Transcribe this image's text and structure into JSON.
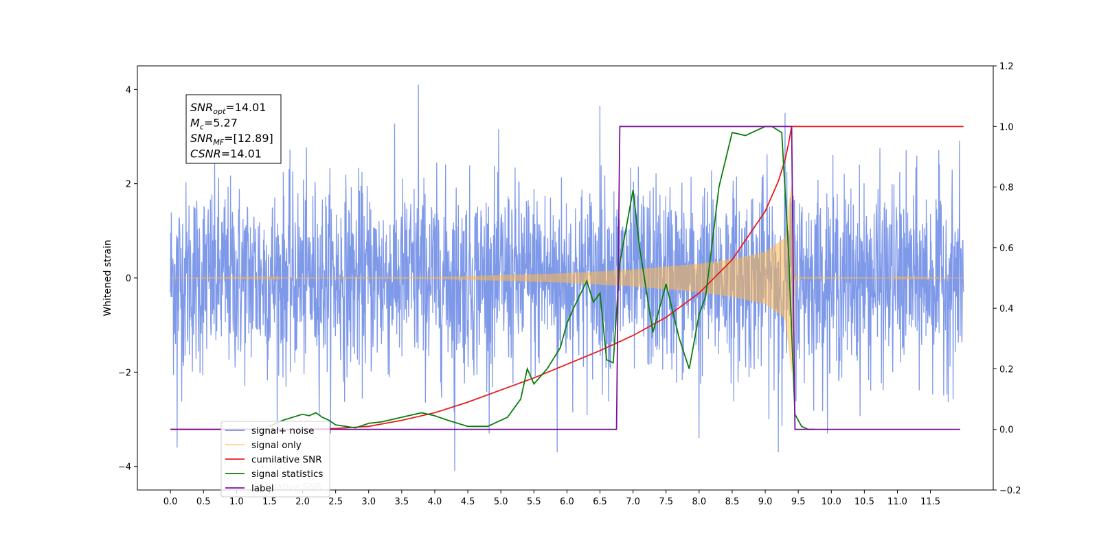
{
  "chart_data": {
    "type": "line",
    "title": "",
    "xlabel": "",
    "ylabel": "Whitened strain",
    "xlim": [
      -0.5,
      12.45
    ],
    "ylim": [
      -4.5,
      4.5
    ],
    "y2lim": [
      -0.2,
      1.2
    ],
    "x_ticks": [
      0.0,
      0.5,
      1.0,
      1.5,
      2.0,
      2.5,
      3.0,
      3.5,
      4.0,
      4.5,
      5.0,
      5.5,
      6.0,
      6.5,
      7.0,
      7.5,
      8.0,
      8.5,
      9.0,
      9.5,
      10.0,
      10.5,
      11.0,
      11.5
    ],
    "x_tick_labels": [
      "0.0",
      "0.5",
      "1.0",
      "1.5",
      "2.0",
      "2.5",
      "3.0",
      "3.5",
      "4.0",
      "4.5",
      "5.0",
      "5.5",
      "6.0",
      "6.5",
      "7.0",
      "7.5",
      "8.0",
      "8.5",
      "9.0",
      "9.5",
      "10.0",
      "10.5",
      "11.0",
      "11.5"
    ],
    "y_ticks": [
      -4,
      -2,
      0,
      2,
      4
    ],
    "y_tick_labels": [
      "−4",
      "−2",
      "0",
      "2",
      "4"
    ],
    "y2_ticks": [
      -0.2,
      0.0,
      0.2,
      0.4,
      0.6,
      0.8,
      1.0,
      1.2
    ],
    "y2_tick_labels": [
      "−0.2",
      "0.0",
      "0.2",
      "0.4",
      "0.6",
      "0.8",
      "1.0",
      "1.2"
    ],
    "grid": false,
    "legend_position": "lower-left",
    "annotation": {
      "lines": [
        {
          "main": "SNR",
          "sub": "opt",
          "rest": "=14.01"
        },
        {
          "main": "M",
          "sub": "c",
          "rest": "=5.27"
        },
        {
          "main": "SNR",
          "sub": "MF",
          "rest": "=[12.89]"
        },
        {
          "main": "CSNR",
          "sub": "",
          "rest": "=14.01"
        }
      ]
    },
    "series": [
      {
        "name": "signal+ noise",
        "axis": "left",
        "color": "#7893e8",
        "kind": "noise",
        "x_range": [
          0.0,
          12.0
        ],
        "spread": 1.0,
        "extreme_peaks": [
          [
            3.75,
            4.1
          ],
          [
            4.3,
            -4.1
          ],
          [
            0.1,
            -3.6
          ],
          [
            6.5,
            3.65
          ],
          [
            9.2,
            -3.7
          ],
          [
            9.3,
            3.5
          ],
          [
            5.85,
            -3.7
          ],
          [
            8.0,
            -3.4
          ]
        ]
      },
      {
        "name": "signal only",
        "axis": "left",
        "color": "#ffb84d",
        "kind": "chirp",
        "x_range": [
          0.0,
          12.0
        ],
        "merger_time": 9.4,
        "envelope": [
          [
            0.0,
            0.0
          ],
          [
            4.0,
            0.02
          ],
          [
            6.0,
            0.1
          ],
          [
            7.0,
            0.18
          ],
          [
            8.0,
            0.3
          ],
          [
            8.5,
            0.4
          ],
          [
            9.0,
            0.55
          ],
          [
            9.3,
            0.85
          ],
          [
            9.4,
            2.0
          ],
          [
            9.45,
            0.02
          ],
          [
            12.0,
            0.0
          ]
        ]
      },
      {
        "name": "cumilative SNR",
        "axis": "right",
        "color": "#e8191c",
        "x": [
          0.0,
          2.0,
          2.5,
          3.0,
          3.5,
          4.0,
          4.5,
          5.0,
          5.5,
          6.0,
          6.5,
          7.0,
          7.5,
          8.0,
          8.5,
          9.0,
          9.2,
          9.3,
          9.35,
          9.4,
          12.0
        ],
        "y": [
          0.0,
          0.0,
          0.003,
          0.01,
          0.03,
          0.055,
          0.09,
          0.13,
          0.17,
          0.215,
          0.26,
          0.31,
          0.37,
          0.45,
          0.56,
          0.72,
          0.82,
          0.89,
          0.94,
          1.0,
          1.0
        ]
      },
      {
        "name": "signal statistics",
        "axis": "right",
        "color": "#0a7d0a",
        "x": [
          1.5,
          1.7,
          1.85,
          2.0,
          2.1,
          2.2,
          2.3,
          2.4,
          2.5,
          2.8,
          3.0,
          3.2,
          3.5,
          3.8,
          4.0,
          4.2,
          4.5,
          4.8,
          5.1,
          5.3,
          5.4,
          5.5,
          5.7,
          5.9,
          6.0,
          6.1,
          6.3,
          6.4,
          6.5,
          6.6,
          6.7,
          6.8,
          7.0,
          7.1,
          7.3,
          7.5,
          7.7,
          7.85,
          8.0,
          8.1,
          8.3,
          8.5,
          8.7,
          9.0,
          9.1,
          9.25,
          9.35,
          9.45,
          9.55,
          9.65,
          9.75
        ],
        "y": [
          0.01,
          0.03,
          0.04,
          0.05,
          0.045,
          0.055,
          0.04,
          0.03,
          0.015,
          0.005,
          0.02,
          0.025,
          0.04,
          0.055,
          0.045,
          0.03,
          0.01,
          0.01,
          0.04,
          0.1,
          0.2,
          0.15,
          0.2,
          0.27,
          0.35,
          0.4,
          0.49,
          0.42,
          0.45,
          0.23,
          0.22,
          0.55,
          0.79,
          0.6,
          0.32,
          0.48,
          0.3,
          0.2,
          0.38,
          0.44,
          0.8,
          0.98,
          0.97,
          1.0,
          1.0,
          0.98,
          0.6,
          0.05,
          0.01,
          0.0,
          0.0
        ]
      },
      {
        "name": "label",
        "axis": "right",
        "color": "#7a1199",
        "x": [
          0.0,
          6.75,
          6.8,
          9.4,
          9.45,
          11.95
        ],
        "y": [
          0.0,
          0.0,
          1.0,
          1.0,
          0.0,
          0.0
        ]
      }
    ],
    "legend_ghost_text": "cumilative SNR"
  }
}
